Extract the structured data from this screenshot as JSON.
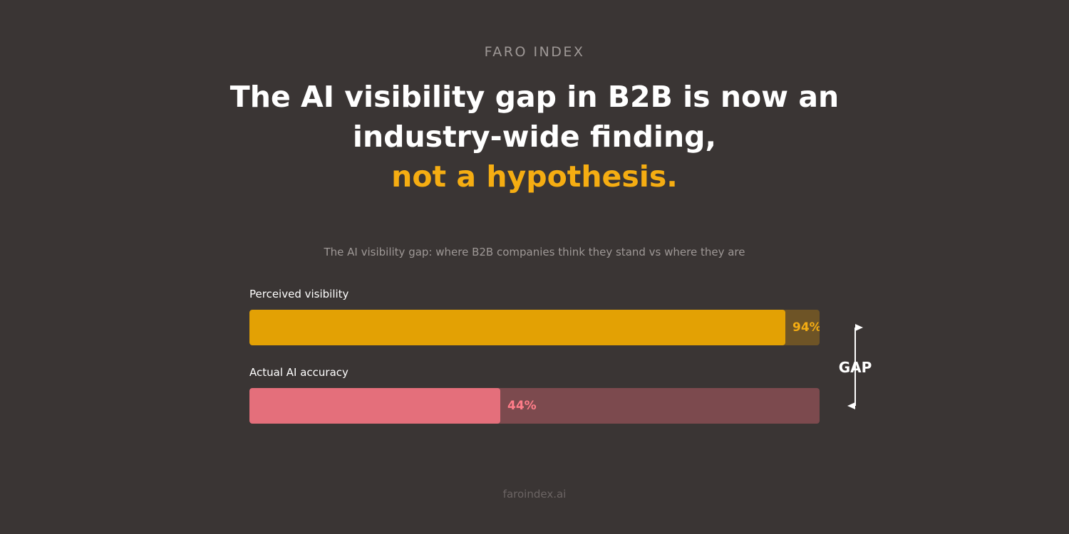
{
  "header": {
    "brand": "FARO INDEX",
    "headline_line1": "The AI visibility gap in B2B is now an",
    "headline_line2": "industry-wide finding,",
    "headline_accent": "not a hypothesis."
  },
  "chart_data": {
    "type": "bar",
    "orientation": "horizontal",
    "title": "The AI visibility gap: where B2B companies think they stand vs where they are",
    "categories": [
      "Perceived visibility",
      "Actual AI accuracy"
    ],
    "values": [
      94,
      44
    ],
    "value_labels": [
      "94%",
      "44%"
    ],
    "xlim": [
      0,
      100
    ],
    "grid": false,
    "colors": {
      "perceived_fill": "#e3a104",
      "perceived_track": "#6e5426",
      "actual_fill": "#e46f7b",
      "actual_track": "#7c4a4e"
    },
    "annotation": "GAP"
  },
  "footer": {
    "site": "faroindex.ai"
  }
}
